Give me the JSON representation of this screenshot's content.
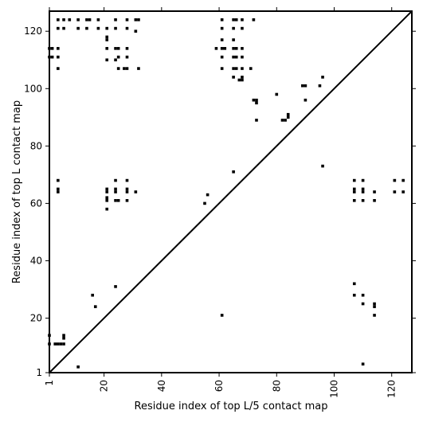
{
  "chart_data": {
    "type": "scatter",
    "title": "",
    "xlabel": "Residue index of top L/5 contact map",
    "ylabel": "Residue index of top L contact map",
    "xlim": [
      1,
      127
    ],
    "ylim": [
      1,
      127
    ],
    "x_ticks": [
      1,
      20,
      40,
      60,
      80,
      100,
      120
    ],
    "y_ticks": [
      1,
      20,
      40,
      60,
      80,
      100,
      120
    ],
    "x_tick_labels": [
      "1",
      "20",
      "40",
      "60",
      "80",
      "100",
      "120"
    ],
    "y_tick_labels": [
      "1",
      "20",
      "40",
      "60",
      "80",
      "100",
      "120"
    ],
    "grid": false,
    "marker": "square",
    "colors": {
      "marker": "#000000",
      "diagonal": "#000000",
      "axes": "#000000",
      "background": "#ffffff"
    },
    "diagonal": {
      "from": [
        1,
        1
      ],
      "to": [
        127,
        127
      ]
    },
    "series": [
      {
        "region": "upper-left",
        "points": [
          [
            4,
            124
          ],
          [
            6,
            124
          ],
          [
            8,
            124
          ],
          [
            11,
            124
          ],
          [
            14,
            124
          ],
          [
            15,
            124
          ],
          [
            18,
            124
          ],
          [
            24,
            124
          ],
          [
            28,
            124
          ],
          [
            31,
            124
          ],
          [
            32,
            124
          ],
          [
            61,
            124
          ],
          [
            65,
            124
          ],
          [
            66,
            124
          ],
          [
            68,
            124
          ],
          [
            72,
            124
          ],
          [
            4,
            121
          ],
          [
            6,
            121
          ],
          [
            11,
            121
          ],
          [
            14,
            121
          ],
          [
            18,
            121
          ],
          [
            21,
            121
          ],
          [
            24,
            121
          ],
          [
            28,
            121
          ],
          [
            31,
            120
          ],
          [
            61,
            121
          ],
          [
            65,
            121
          ],
          [
            68,
            121
          ],
          [
            21,
            118
          ],
          [
            21,
            117
          ],
          [
            61,
            117
          ],
          [
            65,
            117
          ],
          [
            1,
            114
          ],
          [
            2,
            114
          ],
          [
            4,
            114
          ],
          [
            21,
            114
          ],
          [
            24,
            114
          ],
          [
            25,
            114
          ],
          [
            28,
            114
          ],
          [
            59,
            114
          ],
          [
            61,
            114
          ],
          [
            62,
            114
          ],
          [
            65,
            114
          ],
          [
            66,
            114
          ],
          [
            68,
            114
          ],
          [
            1,
            111
          ],
          [
            2,
            111
          ],
          [
            4,
            111
          ],
          [
            21,
            110
          ],
          [
            24,
            110
          ],
          [
            25,
            111
          ],
          [
            28,
            111
          ],
          [
            61,
            111
          ],
          [
            65,
            111
          ],
          [
            66,
            111
          ],
          [
            68,
            111
          ],
          [
            4,
            107
          ],
          [
            25,
            107
          ],
          [
            27,
            107
          ],
          [
            28,
            107
          ],
          [
            32,
            107
          ],
          [
            61,
            107
          ],
          [
            65,
            107
          ],
          [
            66,
            107
          ],
          [
            68,
            107
          ],
          [
            71,
            107
          ],
          [
            65,
            104
          ],
          [
            67,
            103
          ],
          [
            68,
            103
          ],
          [
            68,
            104
          ],
          [
            96,
            104
          ],
          [
            89,
            101
          ],
          [
            90,
            101
          ],
          [
            95,
            101
          ],
          [
            80,
            98
          ],
          [
            72,
            96
          ],
          [
            73,
            96
          ],
          [
            73,
            95
          ],
          [
            90,
            96
          ],
          [
            84,
            91
          ],
          [
            84,
            90
          ],
          [
            82,
            89
          ],
          [
            83,
            89
          ],
          [
            73,
            89
          ],
          [
            96,
            73
          ],
          [
            65,
            71
          ],
          [
            4,
            68
          ],
          [
            24,
            68
          ],
          [
            28,
            68
          ],
          [
            4,
            65
          ],
          [
            4,
            64
          ],
          [
            21,
            65
          ],
          [
            21,
            64
          ],
          [
            24,
            65
          ],
          [
            24,
            64
          ],
          [
            28,
            65
          ],
          [
            28,
            64
          ],
          [
            31,
            64
          ],
          [
            21,
            62
          ],
          [
            21,
            61
          ],
          [
            24,
            61
          ],
          [
            25,
            61
          ],
          [
            28,
            61
          ],
          [
            56,
            63
          ],
          [
            55,
            60
          ],
          [
            21,
            58
          ]
        ]
      },
      {
        "region": "lower-right",
        "points": [
          [
            107,
            68
          ],
          [
            110,
            68
          ],
          [
            121,
            68
          ],
          [
            124,
            68
          ],
          [
            107,
            65
          ],
          [
            107,
            64
          ],
          [
            110,
            65
          ],
          [
            110,
            64
          ],
          [
            114,
            64
          ],
          [
            121,
            64
          ],
          [
            124,
            64
          ],
          [
            107,
            61
          ],
          [
            110,
            61
          ],
          [
            114,
            61
          ],
          [
            107,
            32
          ],
          [
            24,
            31
          ],
          [
            107,
            28
          ],
          [
            110,
            28
          ],
          [
            16,
            28
          ],
          [
            110,
            25
          ],
          [
            114,
            25
          ],
          [
            114,
            24
          ],
          [
            17,
            24
          ],
          [
            61,
            21
          ],
          [
            114,
            21
          ],
          [
            1,
            14
          ],
          [
            6,
            14
          ],
          [
            6,
            13
          ],
          [
            1,
            11
          ],
          [
            3,
            11
          ],
          [
            4,
            11
          ],
          [
            5,
            11
          ],
          [
            6,
            11
          ],
          [
            110,
            4
          ],
          [
            11,
            3
          ]
        ]
      }
    ]
  }
}
